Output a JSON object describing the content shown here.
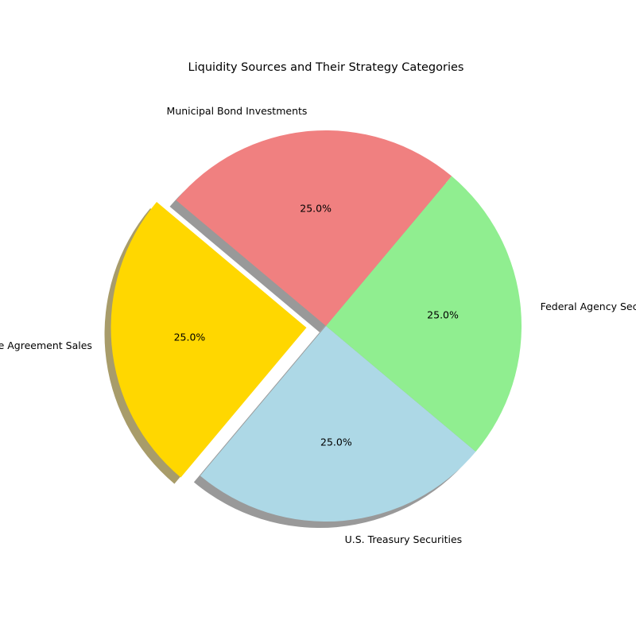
{
  "chart_data": {
    "type": "pie",
    "title": "Liquidity Sources and Their Strategy Categories",
    "slices": [
      {
        "label": "Repurchase Agreement Sales",
        "value": 25,
        "percent_label": "25.0%",
        "color": "#ffd700",
        "exploded": true
      },
      {
        "label": "U.S. Treasury Securities",
        "value": 25,
        "percent_label": "25.0%",
        "color": "#add8e6",
        "exploded": false
      },
      {
        "label": "Federal Agency Securities",
        "value": 25,
        "percent_label": "25.0%",
        "color": "#90ee90",
        "exploded": false
      },
      {
        "label": "Municipal Bond Investments",
        "value": 25,
        "percent_label": "25.0%",
        "color": "#f08080",
        "exploded": false
      }
    ],
    "start_angle_deg": 140,
    "direction": "counterclockwise",
    "shadow": true
  }
}
